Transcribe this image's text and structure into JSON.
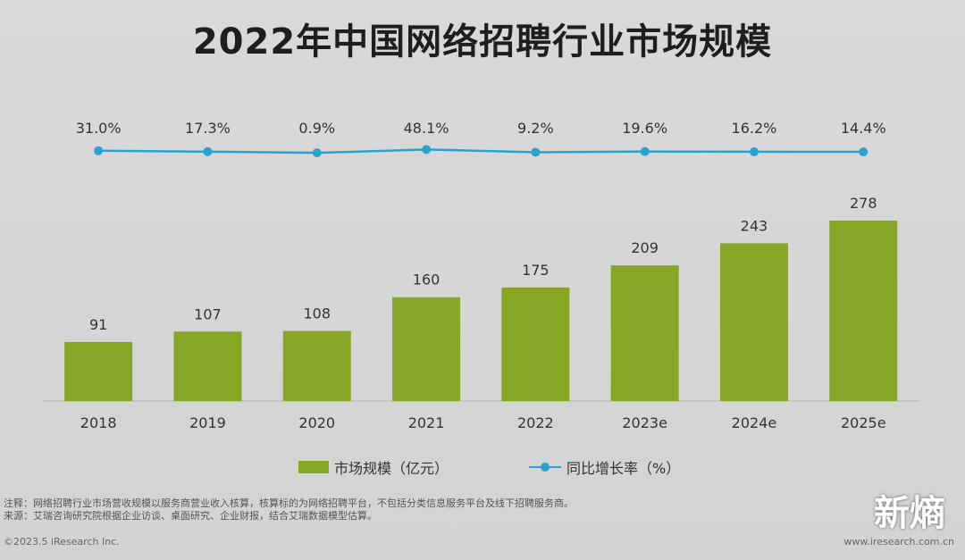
{
  "colors": {
    "bar": "#86a726",
    "line": "#2aa2cf",
    "text": "#333333"
  },
  "title": "2022年中国网络招聘行业市场规模",
  "chart_data": {
    "type": "bar",
    "title": "2022年中国网络招聘行业市场规模",
    "categories": [
      "2018",
      "2019",
      "2020",
      "2021",
      "2022",
      "2023e",
      "2024e",
      "2025e"
    ],
    "series": [
      {
        "name": "市场规模（亿元）",
        "type": "bar",
        "values": [
          91,
          107,
          108,
          160,
          175,
          209,
          243,
          278
        ]
      },
      {
        "name": "同比增长率（%）",
        "type": "line",
        "values": [
          31.0,
          17.3,
          0.9,
          48.1,
          9.2,
          19.6,
          16.2,
          14.4
        ],
        "labels": [
          "31.0%",
          "17.3%",
          "0.9%",
          "48.1%",
          "9.2%",
          "19.6%",
          "16.2%",
          "14.4%"
        ]
      }
    ],
    "ylim": [
      0,
      278
    ],
    "legend": "bottom-center"
  },
  "legend": {
    "bar_label": "市场规模（亿元）",
    "line_label": "同比增长率（%）"
  },
  "footer": {
    "note": "注释：网络招聘行业市场营收规模以服务商营业收入核算，核算标的为网络招聘平台，不包括分类信息服务平台及线下招聘服务商。",
    "source": "来源：艾瑞咨询研究院根据企业访谈、桌面研究、企业财报，结合艾瑞数据模型估算。",
    "copyright": "©2023.5 iResearch Inc.",
    "site": "www.iresearch.com.cn"
  },
  "watermark": "新熵"
}
